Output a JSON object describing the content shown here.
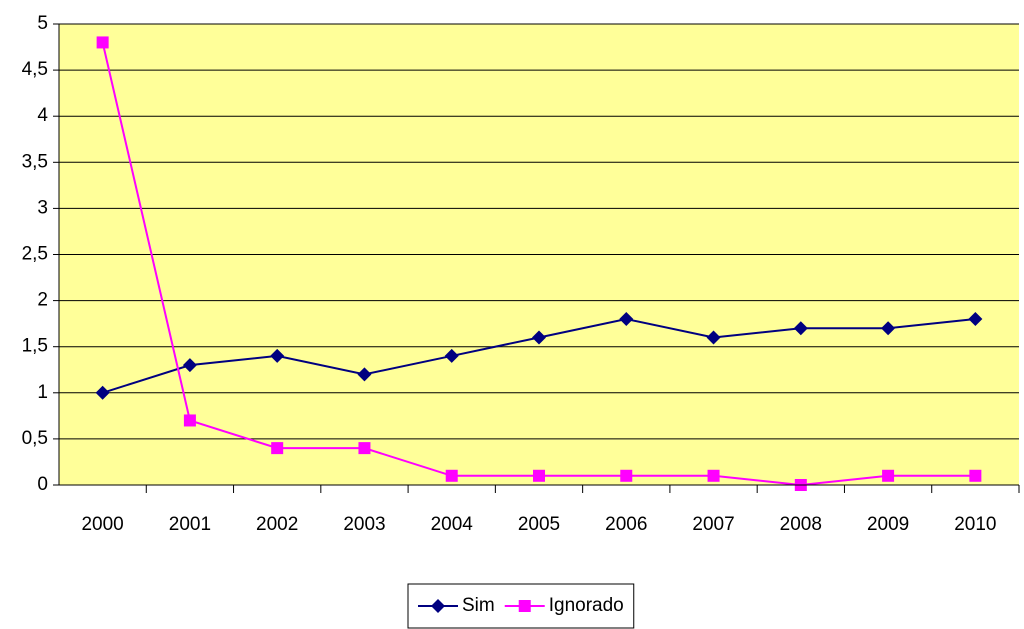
{
  "chart_data": {
    "type": "line",
    "categories": [
      "2000",
      "2001",
      "2002",
      "2003",
      "2004",
      "2005",
      "2006",
      "2007",
      "2008",
      "2009",
      "2010"
    ],
    "series": [
      {
        "name": "Sim",
        "color": "#000080",
        "marker": "diamond",
        "values": [
          1.0,
          1.3,
          1.4,
          1.2,
          1.4,
          1.6,
          1.8,
          1.6,
          1.7,
          1.7,
          1.8
        ]
      },
      {
        "name": "Ignorado",
        "color": "#ff00ff",
        "marker": "square",
        "values": [
          4.8,
          0.7,
          0.4,
          0.4,
          0.1,
          0.1,
          0.1,
          0.1,
          0.0,
          0.1,
          0.1
        ]
      }
    ],
    "ylim": [
      0,
      5
    ],
    "yticks": [
      0,
      {
        "value": 0.5,
        "label": "0,5"
      },
      1,
      {
        "value": 1.5,
        "label": "1,5"
      },
      2,
      {
        "value": 2.5,
        "label": "2,5"
      },
      3,
      {
        "value": 3.5,
        "label": "3,5"
      },
      4,
      {
        "value": 4.5,
        "label": "4,5"
      },
      5
    ],
    "grid": true,
    "plot_background": "#ffff99",
    "legend": "bottom"
  }
}
